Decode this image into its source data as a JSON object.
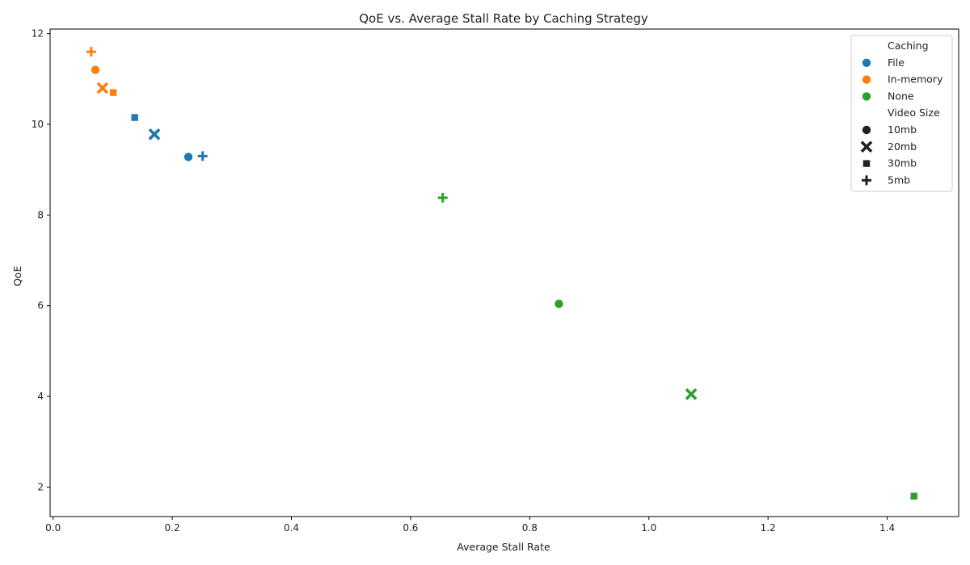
{
  "chart_data": {
    "type": "scatter",
    "title": "QoE vs. Average Stall Rate by Caching Strategy",
    "xlabel": "Average Stall Rate",
    "ylabel": "QoE",
    "xlim": [
      -0.005,
      1.52
    ],
    "ylim": [
      1.35,
      12.1
    ],
    "xticks": [
      0.0,
      0.2,
      0.4,
      0.6,
      0.8,
      1.0,
      1.2,
      1.4
    ],
    "xtick_labels": [
      "0.0",
      "0.2",
      "0.4",
      "0.6",
      "0.8",
      "1.0",
      "1.2",
      "1.4"
    ],
    "yticks": [
      2,
      4,
      6,
      8,
      10,
      12
    ],
    "ytick_labels": [
      "2",
      "4",
      "6",
      "8",
      "10",
      "12"
    ],
    "grid": false,
    "legend_position": "top-right",
    "legend": {
      "hue_title": "Caching",
      "hue_entries": [
        {
          "label": "File",
          "color": "#1f77b4"
        },
        {
          "label": "In-memory",
          "color": "#ff7f0e"
        },
        {
          "label": "None",
          "color": "#2ca02c"
        }
      ],
      "style_title": "Video Size",
      "style_entries": [
        {
          "label": "10mb",
          "marker": "circle"
        },
        {
          "label": "20mb",
          "marker": "x"
        },
        {
          "label": "30mb",
          "marker": "square"
        },
        {
          "label": "5mb",
          "marker": "plus"
        }
      ]
    },
    "points": [
      {
        "caching": "In-memory",
        "size": "5mb",
        "x": 0.064,
        "y": 11.6
      },
      {
        "caching": "In-memory",
        "size": "10mb",
        "x": 0.071,
        "y": 11.2
      },
      {
        "caching": "In-memory",
        "size": "20mb",
        "x": 0.083,
        "y": 10.8
      },
      {
        "caching": "In-memory",
        "size": "30mb",
        "x": 0.101,
        "y": 10.7
      },
      {
        "caching": "File",
        "size": "30mb",
        "x": 0.137,
        "y": 10.15
      },
      {
        "caching": "File",
        "size": "20mb",
        "x": 0.17,
        "y": 9.78
      },
      {
        "caching": "File",
        "size": "10mb",
        "x": 0.227,
        "y": 9.28
      },
      {
        "caching": "File",
        "size": "5mb",
        "x": 0.251,
        "y": 9.3
      },
      {
        "caching": "None",
        "size": "5mb",
        "x": 0.654,
        "y": 8.38
      },
      {
        "caching": "None",
        "size": "10mb",
        "x": 0.849,
        "y": 6.04
      },
      {
        "caching": "None",
        "size": "20mb",
        "x": 1.071,
        "y": 4.05
      },
      {
        "caching": "None",
        "size": "30mb",
        "x": 1.445,
        "y": 1.8
      }
    ]
  }
}
